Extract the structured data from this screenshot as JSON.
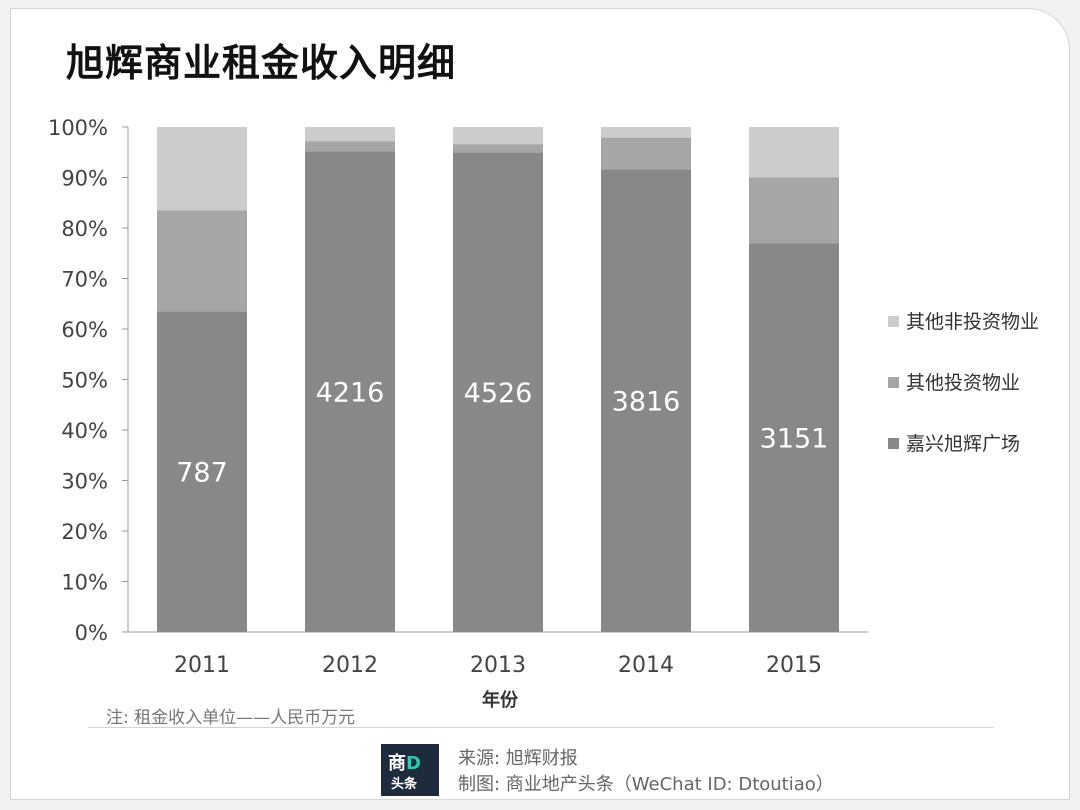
{
  "title": "旭辉商业租金收入明细",
  "chart_data": {
    "type": "bar",
    "stacked": true,
    "percent": true,
    "categories": [
      "2011",
      "2012",
      "2013",
      "2014",
      "2015"
    ],
    "series": [
      {
        "name": "嘉兴旭辉广场",
        "color": "#888888",
        "values": [
          63.5,
          95.2,
          95.0,
          91.6,
          77.0
        ],
        "labels": [
          "787",
          "4216",
          "4526",
          "3816",
          "3151"
        ]
      },
      {
        "name": "其他投资物业",
        "color": "#a6a6a6",
        "values": [
          20.0,
          2.0,
          1.6,
          6.3,
          13.0
        ]
      },
      {
        "name": "其他非投资物业",
        "color": "#cccccc",
        "values": [
          16.5,
          2.8,
          3.4,
          2.1,
          10.0
        ]
      }
    ],
    "yticks": [
      "0%",
      "10%",
      "20%",
      "30%",
      "40%",
      "50%",
      "60%",
      "70%",
      "80%",
      "90%",
      "100%"
    ],
    "ylim": [
      0,
      100
    ],
    "xlabel": "年份",
    "legend_position": "right",
    "grid": false
  },
  "note": "注: 租金收入单位——人民币万元",
  "footer": {
    "source": "来源: 旭辉财报",
    "credit": "制图: 商业地产头条（WeChat ID: Dtoutiao）",
    "logo_top_main": "商",
    "logo_top_d": "D",
    "logo_bottom": "头条"
  }
}
